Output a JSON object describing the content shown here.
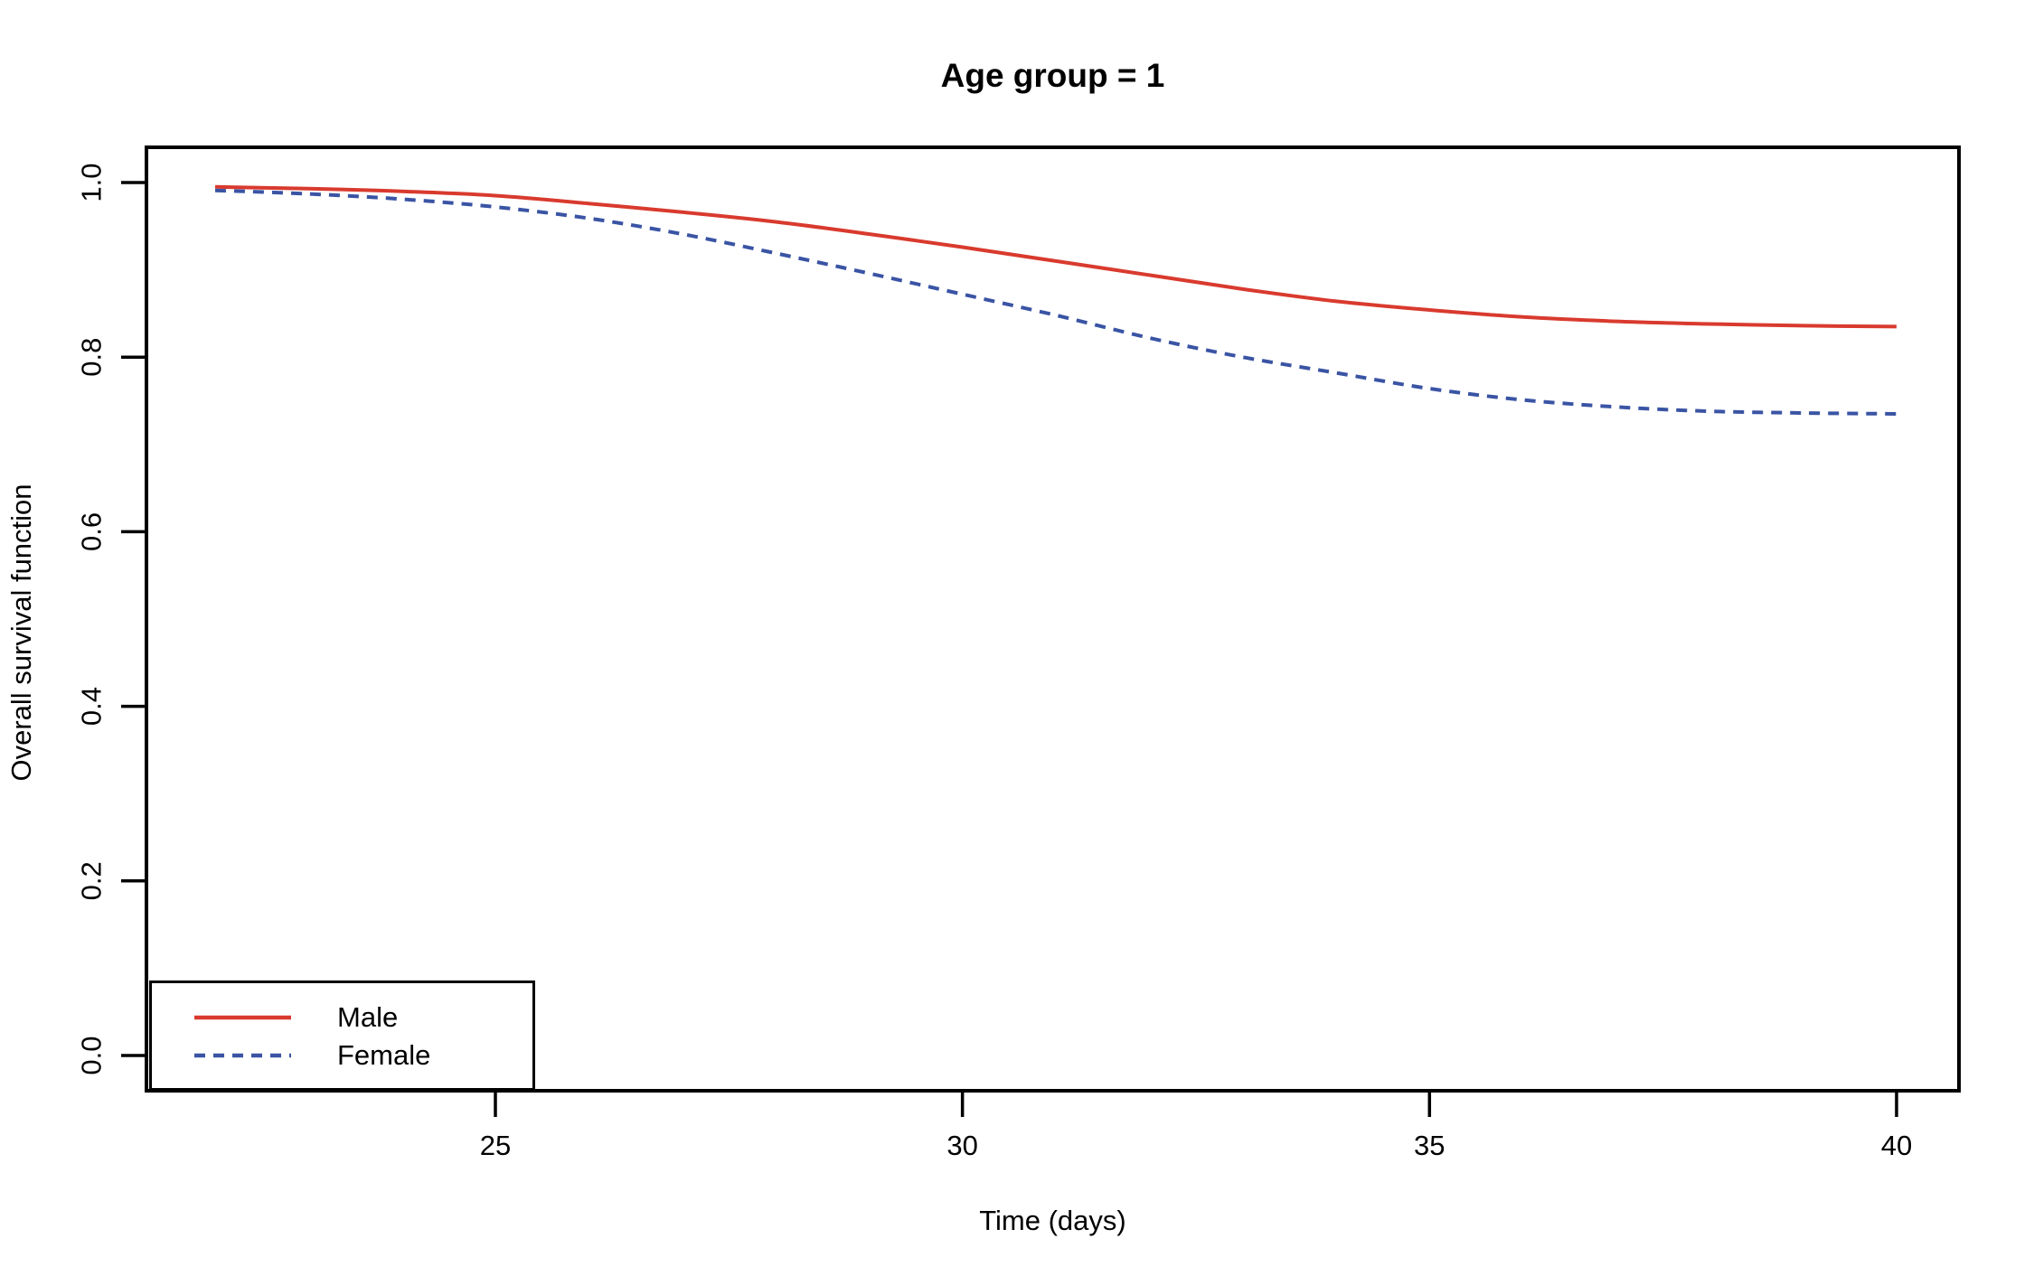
{
  "chart_data": {
    "type": "line",
    "title": "Age group = 1",
    "xlabel": "Time (days)",
    "ylabel": "Overall survival function",
    "xlim": [
      22,
      40
    ],
    "ylim": [
      0.0,
      1.0
    ],
    "x_ticks": [
      25,
      30,
      35,
      40
    ],
    "y_ticks": [
      0.0,
      0.2,
      0.4,
      0.6,
      0.8,
      1.0
    ],
    "grid": false,
    "legend_position": "bottom-left",
    "x": [
      22,
      23,
      24,
      25,
      26,
      27,
      28,
      29,
      30,
      31,
      32,
      33,
      34,
      35,
      36,
      37,
      38,
      39,
      40
    ],
    "series": [
      {
        "name": "Male",
        "color": "#D93A2E",
        "line_style": "solid",
        "values": [
          0.995,
          0.993,
          0.99,
          0.985,
          0.976,
          0.966,
          0.955,
          0.941,
          0.926,
          0.91,
          0.894,
          0.878,
          0.864,
          0.854,
          0.846,
          0.841,
          0.838,
          0.836,
          0.835
        ]
      },
      {
        "name": "Female",
        "color": "#3A54A4",
        "line_style": "dashed",
        "values": [
          0.991,
          0.987,
          0.981,
          0.972,
          0.959,
          0.941,
          0.919,
          0.896,
          0.872,
          0.848,
          0.822,
          0.8,
          0.782,
          0.764,
          0.751,
          0.743,
          0.738,
          0.736,
          0.735
        ]
      }
    ],
    "axis_color": "#000000",
    "background_color": "#FFFFFF"
  }
}
